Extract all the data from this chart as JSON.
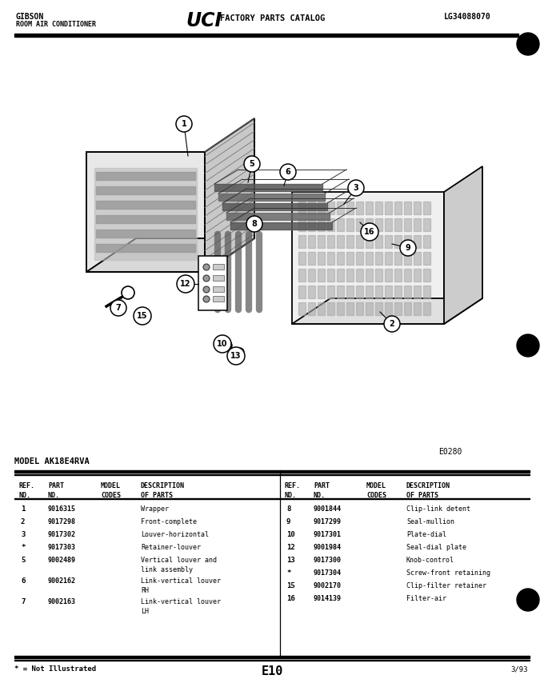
{
  "page_title_left1": "GIBSON",
  "page_title_left2": "ROOM AIR CONDITIONER",
  "page_title_right": "LG34088070",
  "model_label": "MODEL AK18E4RVA",
  "diagram_code": "E0280",
  "page_code": "E10",
  "date_code": "3/93",
  "footnote": "* = Not Illustrated",
  "left_parts": [
    [
      "1",
      "9016315",
      "",
      "Wrapper"
    ],
    [
      "2",
      "9017298",
      "",
      "Front-complete"
    ],
    [
      "3",
      "9017302",
      "",
      "Louver-horizontal"
    ],
    [
      "*",
      "9017303",
      "",
      "Retainer-louver"
    ],
    [
      "5",
      "9002489",
      "",
      "Vertical louver and\nlink assembly"
    ],
    [
      "6",
      "9002162",
      "",
      "Link-vertical louver\nRH"
    ],
    [
      "7",
      "9002163",
      "",
      "Link-vertical louver\nLH"
    ]
  ],
  "right_parts": [
    [
      "8",
      "9001844",
      "",
      "Clip-link detent"
    ],
    [
      "9",
      "9017299",
      "",
      "Seal-mullion"
    ],
    [
      "10",
      "9017301",
      "",
      "Plate-dial"
    ],
    [
      "12",
      "9001984",
      "",
      "Seal-dial plate"
    ],
    [
      "13",
      "9017300",
      "",
      "Knob-control"
    ],
    [
      "*",
      "9017304",
      "",
      "Screw-front retaining"
    ],
    [
      "15",
      "9002170",
      "",
      "Clip-filter retainer"
    ],
    [
      "16",
      "9014139",
      "",
      "Filter-air"
    ]
  ],
  "callouts": [
    [
      "1",
      230,
      155
    ],
    [
      "2",
      490,
      405
    ],
    [
      "3",
      445,
      235
    ],
    [
      "5",
      315,
      205
    ],
    [
      "6",
      360,
      215
    ],
    [
      "7",
      148,
      385
    ],
    [
      "8",
      318,
      280
    ],
    [
      "9",
      510,
      310
    ],
    [
      "10",
      278,
      430
    ],
    [
      "12",
      232,
      355
    ],
    [
      "13",
      295,
      445
    ],
    [
      "15",
      178,
      395
    ],
    [
      "16",
      462,
      290
    ]
  ]
}
